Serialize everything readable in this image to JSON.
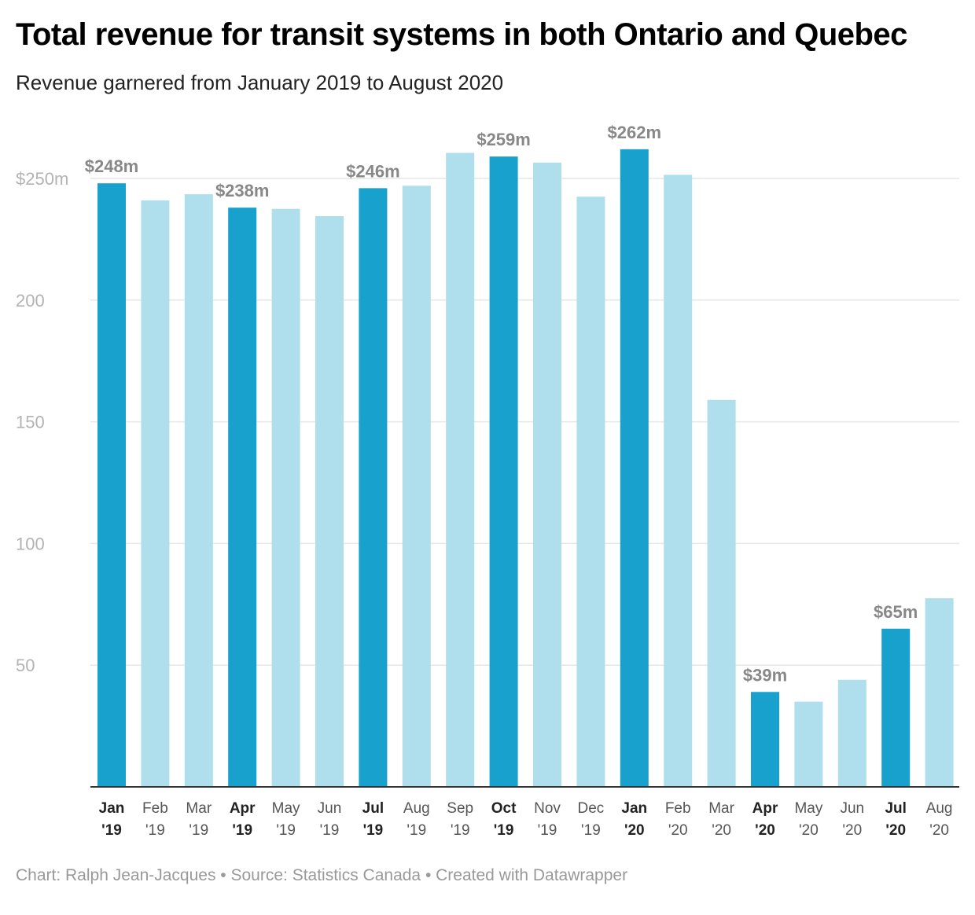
{
  "title": "Total revenue for transit systems in both Ontario and Quebec",
  "subtitle": "Revenue garnered from January 2019 to August 2020",
  "footer": "Chart: Ralph Jean-Jacques • Source: Statistics Canada • Created with Datawrapper",
  "colors": {
    "highlight": "#18a1cd",
    "regular": "#afdeed",
    "grid": "#e6e6e6",
    "axis": "#333333"
  },
  "chart_data": {
    "type": "bar",
    "categories": [
      [
        "Jan",
        "'19"
      ],
      [
        "Feb",
        "'19"
      ],
      [
        "Mar",
        "'19"
      ],
      [
        "Apr",
        "'19"
      ],
      [
        "May",
        "'19"
      ],
      [
        "Jun",
        "'19"
      ],
      [
        "Jul",
        "'19"
      ],
      [
        "Aug",
        "'19"
      ],
      [
        "Sep",
        "'19"
      ],
      [
        "Oct",
        "'19"
      ],
      [
        "Nov",
        "'19"
      ],
      [
        "Dec",
        "'19"
      ],
      [
        "Jan",
        "'20"
      ],
      [
        "Feb",
        "'20"
      ],
      [
        "Mar",
        "'20"
      ],
      [
        "Apr",
        "'20"
      ],
      [
        "May",
        "'20"
      ],
      [
        "Jun",
        "'20"
      ],
      [
        "Jul",
        "'20"
      ],
      [
        "Aug",
        "'20"
      ]
    ],
    "values": [
      248,
      241,
      243.5,
      238,
      237.5,
      234.5,
      246,
      247,
      260.5,
      259,
      256.5,
      242.5,
      262,
      251.5,
      159,
      39,
      35,
      44,
      65,
      77.5
    ],
    "highlighted": [
      true,
      false,
      false,
      true,
      false,
      false,
      true,
      false,
      false,
      true,
      false,
      false,
      true,
      false,
      false,
      true,
      false,
      false,
      true,
      false
    ],
    "data_labels": [
      "$248m",
      "",
      "",
      "$238m",
      "",
      "",
      "$246m",
      "",
      "",
      "$259m",
      "",
      "",
      "$262m",
      "",
      "",
      "$39m",
      "",
      "",
      "$65m",
      ""
    ],
    "yticks": [
      50,
      100,
      150,
      200,
      250
    ],
    "ytick_labels": [
      "50",
      "100",
      "150",
      "200",
      "$250m"
    ],
    "ylim": [
      0,
      250
    ],
    "grid": true
  }
}
